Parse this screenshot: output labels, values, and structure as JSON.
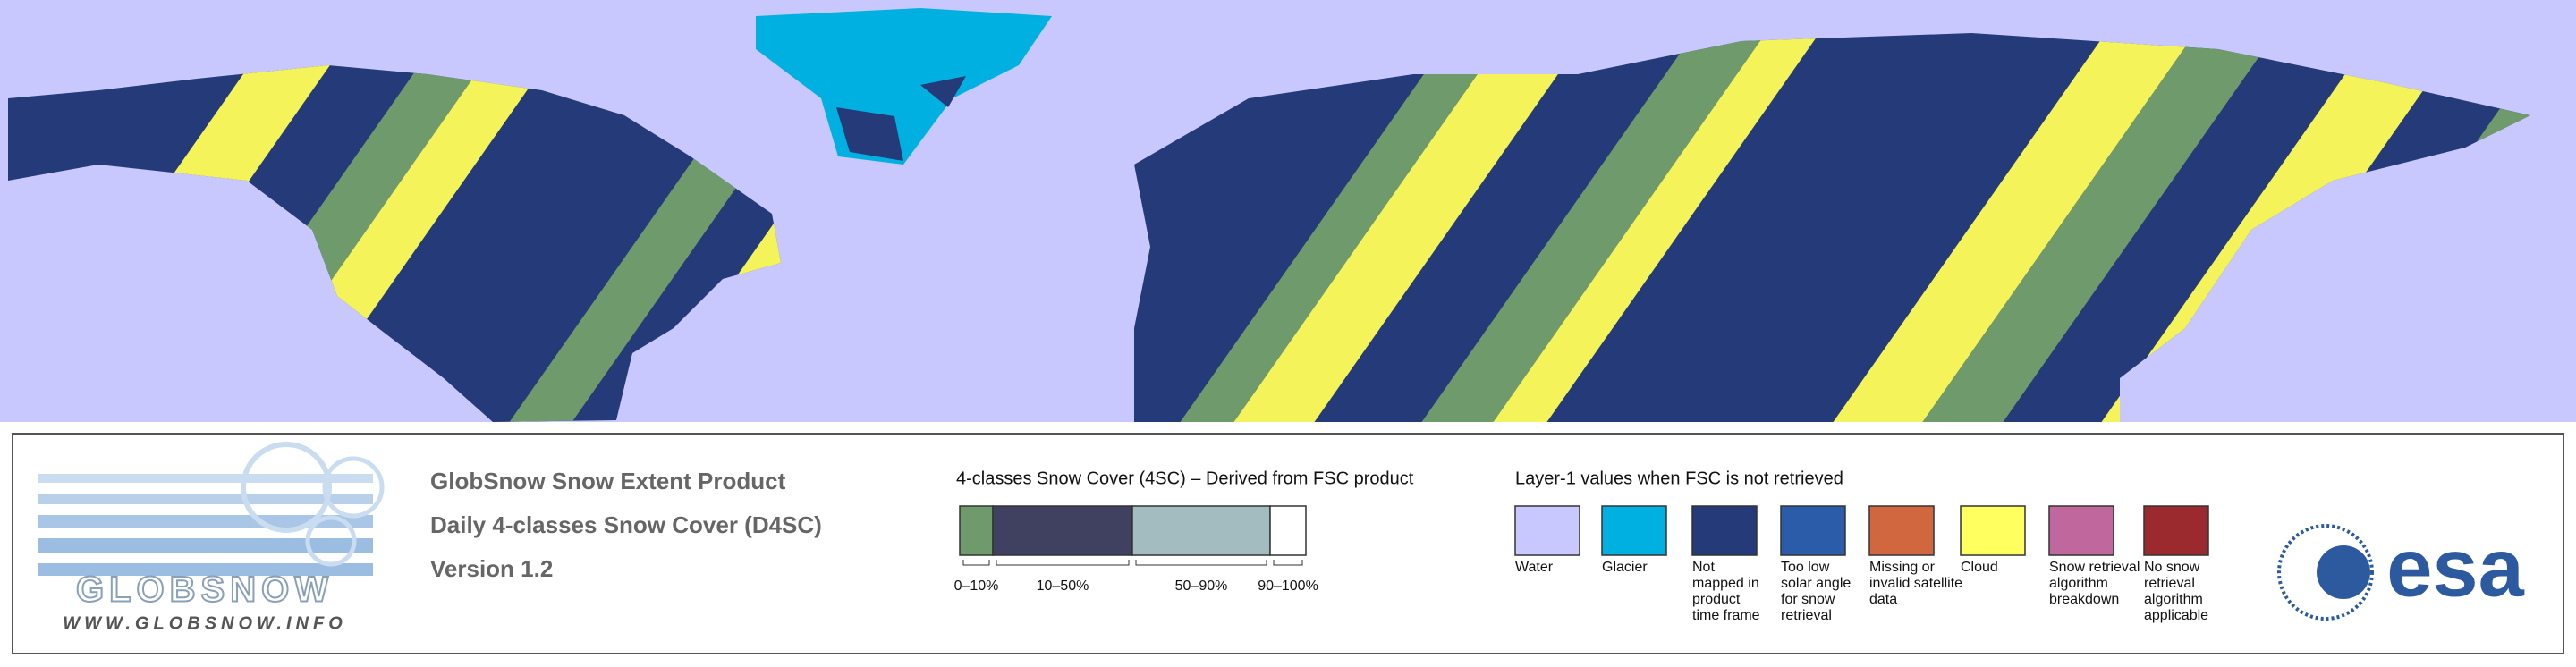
{
  "logo": {
    "name": "GLOBSNOW",
    "url": "WWW.GLOBSNOW.INFO"
  },
  "product": {
    "lines": [
      "GlobSnow Snow Extent Product",
      "Daily 4-classes Snow Cover (D4SC)",
      "Version 1.2"
    ]
  },
  "snow_cover_legend": {
    "title": "4-classes Snow Cover (4SC) – Derived from FSC product",
    "classes": [
      {
        "label": "0–10%",
        "color": "#6f9a6c"
      },
      {
        "label": "10–50%",
        "color": "#404060"
      },
      {
        "label": "50–90%",
        "color": "#a3bcc0"
      },
      {
        "label": "90–100%",
        "color": "#ffffff"
      }
    ]
  },
  "layer1_legend": {
    "title": "Layer-1 values when FSC is not retrieved",
    "items": [
      {
        "label_lines": [
          "Water"
        ],
        "color": "#c8c8ff"
      },
      {
        "label_lines": [
          "Glacier"
        ],
        "color": "#00b0e0"
      },
      {
        "label_lines": [
          "Not",
          "mapped in",
          "product",
          "time frame"
        ],
        "color": "#253a78"
      },
      {
        "label_lines": [
          "Too low",
          "solar angle",
          "for snow",
          "retrieval"
        ],
        "color": "#2a5caa"
      },
      {
        "label_lines": [
          "Missing or",
          "invalid satellite",
          "data"
        ],
        "color": "#d0673f"
      },
      {
        "label_lines": [
          "Cloud"
        ],
        "color": "#ffff60"
      },
      {
        "label_lines": [
          "Snow retrieval",
          "algorithm",
          "breakdown"
        ],
        "color": "#c0679e"
      },
      {
        "label_lines": [
          "No snow",
          "retrieval",
          "algorithm",
          "applicable"
        ],
        "color": "#9a2a2e"
      }
    ]
  },
  "esa_logo": "esa"
}
